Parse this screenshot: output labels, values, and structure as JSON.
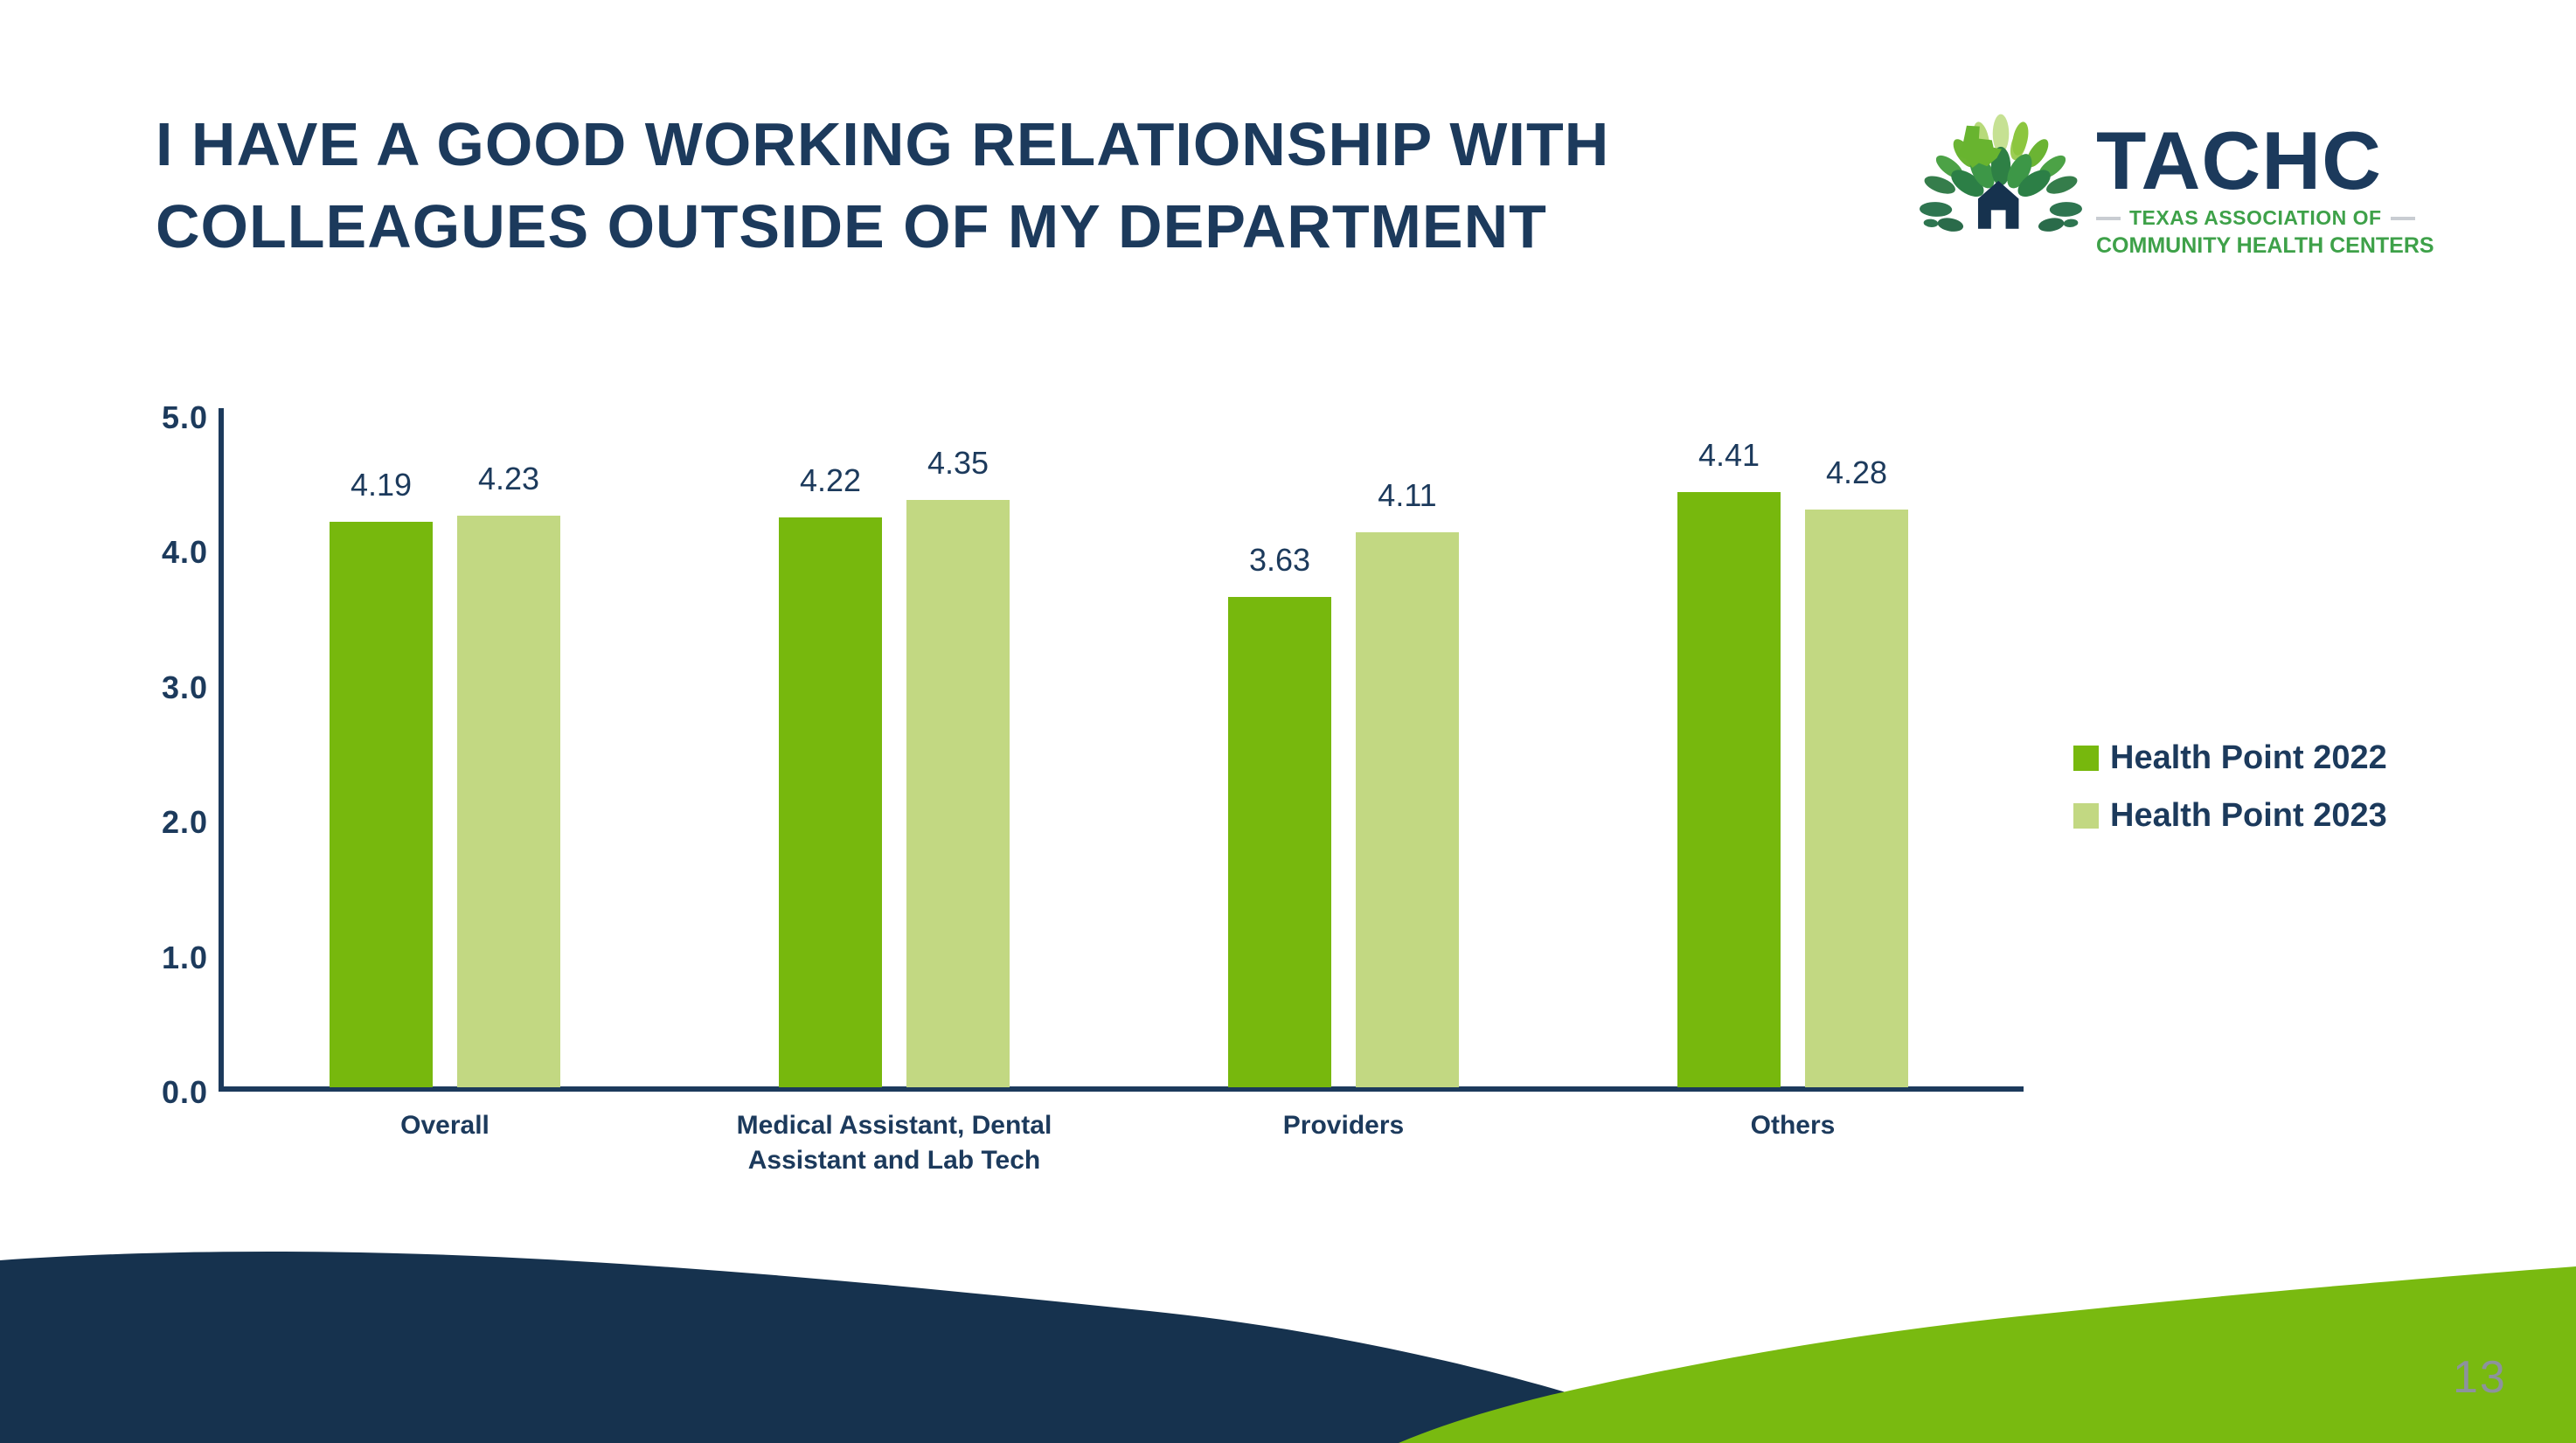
{
  "slide": {
    "title_lines": [
      "I HAVE A GOOD WORKING RELATIONSHIP WITH",
      "COLLEAGUES OUTSIDE OF MY DEPARTMENT"
    ],
    "page_number": "13"
  },
  "logo": {
    "name": "TACHC",
    "subtitle_line1": "TEXAS ASSOCIATION OF",
    "subtitle_line2": "COMMUNITY HEALTH CENTERS"
  },
  "chart_data": {
    "type": "bar",
    "title": "",
    "categories": [
      "Overall",
      "Medical Assistant, Dental Assistant and Lab Tech",
      "Providers",
      "Others"
    ],
    "series": [
      {
        "name": "Health Point 2022",
        "color": "#77B80D",
        "values": [
          4.19,
          4.22,
          3.63,
          4.41
        ]
      },
      {
        "name": "Health Point 2023",
        "color": "#C2D882",
        "values": [
          4.23,
          4.35,
          4.11,
          4.28
        ]
      }
    ],
    "xlabel": "",
    "ylabel": "",
    "ylim": [
      0,
      5
    ],
    "y_ticks": [
      5.0,
      4.0,
      3.0,
      2.0,
      1.0,
      0.0
    ],
    "y_tick_labels": [
      "5.0",
      "4.0",
      "3.0",
      "2.0",
      "1.0",
      "0.0"
    ],
    "grid": false,
    "legend_position": "right",
    "value_labels": true
  },
  "colors": {
    "text_navy": "#1C3A5C",
    "footer_navy": "#16324E",
    "footer_green": "#79BA10",
    "logo_green": "#3EA149",
    "page_number_gray": "#8D929D",
    "logo_dash_gray": "#C9CDD2"
  }
}
